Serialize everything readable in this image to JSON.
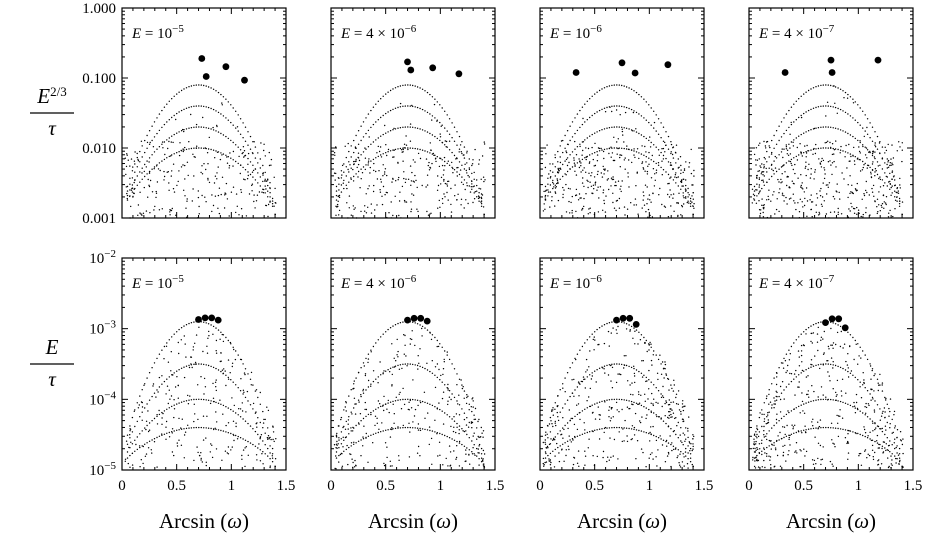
{
  "chart_data": [
    {
      "type": "scatter",
      "row": "top",
      "ylabel": {
        "num": "E",
        "num_sup": "2/3",
        "den": "τ"
      },
      "yscale": "log",
      "ylim": [
        0.001,
        1.0
      ],
      "yticks": [
        {
          "value": 1.0,
          "label": "1.000"
        },
        {
          "value": 0.1,
          "label": "0.100"
        },
        {
          "value": 0.01,
          "label": "0.010"
        },
        {
          "value": 0.001,
          "label": "0.001"
        }
      ],
      "xlim": [
        0,
        1.5
      ],
      "xticks": [
        {
          "value": 0,
          "label": "0"
        },
        {
          "value": 0.5,
          "label": "0.5"
        },
        {
          "value": 1,
          "label": "1"
        },
        {
          "value": 1.5,
          "label": "1.5"
        }
      ],
      "xlabel": "",
      "panels": [
        {
          "label_pre": "E = 10",
          "label_sup": "−5",
          "highlight": [
            {
              "x": 0.73,
              "y": 0.19
            },
            {
              "x": 0.77,
              "y": 0.105
            },
            {
              "x": 0.95,
              "y": 0.145
            },
            {
              "x": 1.12,
              "y": 0.093
            }
          ]
        },
        {
          "label_pre": "E = 4 × 10",
          "label_sup": "−6",
          "highlight": [
            {
              "x": 0.7,
              "y": 0.17
            },
            {
              "x": 0.73,
              "y": 0.13
            },
            {
              "x": 0.93,
              "y": 0.14
            },
            {
              "x": 1.17,
              "y": 0.115
            }
          ]
        },
        {
          "label_pre": "E = 10",
          "label_sup": "−6",
          "highlight": [
            {
              "x": 0.33,
              "y": 0.12
            },
            {
              "x": 0.75,
              "y": 0.165
            },
            {
              "x": 0.87,
              "y": 0.118
            },
            {
              "x": 1.17,
              "y": 0.155
            }
          ]
        },
        {
          "label_pre": "E = 4 × 10",
          "label_sup": "−7",
          "highlight": [
            {
              "x": 0.33,
              "y": 0.12
            },
            {
              "x": 0.75,
              "y": 0.18
            },
            {
              "x": 0.76,
              "y": 0.12
            },
            {
              "x": 1.18,
              "y": 0.18
            }
          ]
        }
      ]
    },
    {
      "type": "scatter",
      "row": "bottom",
      "ylabel": {
        "num": "E",
        "num_sup": "",
        "den": "τ"
      },
      "yscale": "log",
      "ylim": [
        1e-05,
        0.01
      ],
      "yticks": [
        {
          "value": 0.01,
          "label_base": "10",
          "label_sup": "−2"
        },
        {
          "value": 0.001,
          "label_base": "10",
          "label_sup": "−3"
        },
        {
          "value": 0.0001,
          "label_base": "10",
          "label_sup": "−4"
        },
        {
          "value": 1e-05,
          "label_base": "10",
          "label_sup": "−5"
        }
      ],
      "xlim": [
        0,
        1.5
      ],
      "xticks": [
        {
          "value": 0,
          "label": "0"
        },
        {
          "value": 0.5,
          "label": "0.5"
        },
        {
          "value": 1,
          "label": "1"
        },
        {
          "value": 1.5,
          "label": "1.5"
        }
      ],
      "xlabel": "Arcsin (ω)",
      "panels": [
        {
          "label_pre": "E = 10",
          "label_sup": "−5",
          "highlight": [
            {
              "x": 0.7,
              "y": 0.00135
            },
            {
              "x": 0.76,
              "y": 0.00142
            },
            {
              "x": 0.82,
              "y": 0.00142
            },
            {
              "x": 0.88,
              "y": 0.00132
            }
          ]
        },
        {
          "label_pre": "E = 4 × 10",
          "label_sup": "−6",
          "highlight": [
            {
              "x": 0.7,
              "y": 0.00132
            },
            {
              "x": 0.76,
              "y": 0.0014
            },
            {
              "x": 0.82,
              "y": 0.0014
            },
            {
              "x": 0.88,
              "y": 0.00128
            }
          ]
        },
        {
          "label_pre": "E = 10",
          "label_sup": "−6",
          "highlight": [
            {
              "x": 0.7,
              "y": 0.00132
            },
            {
              "x": 0.76,
              "y": 0.0014
            },
            {
              "x": 0.82,
              "y": 0.0014
            },
            {
              "x": 0.88,
              "y": 0.00115
            }
          ]
        },
        {
          "label_pre": "E = 4 × 10",
          "label_sup": "−7",
          "highlight": [
            {
              "x": 0.7,
              "y": 0.00122
            },
            {
              "x": 0.76,
              "y": 0.00138
            },
            {
              "x": 0.82,
              "y": 0.00138
            },
            {
              "x": 0.88,
              "y": 0.00103
            }
          ]
        }
      ]
    }
  ]
}
